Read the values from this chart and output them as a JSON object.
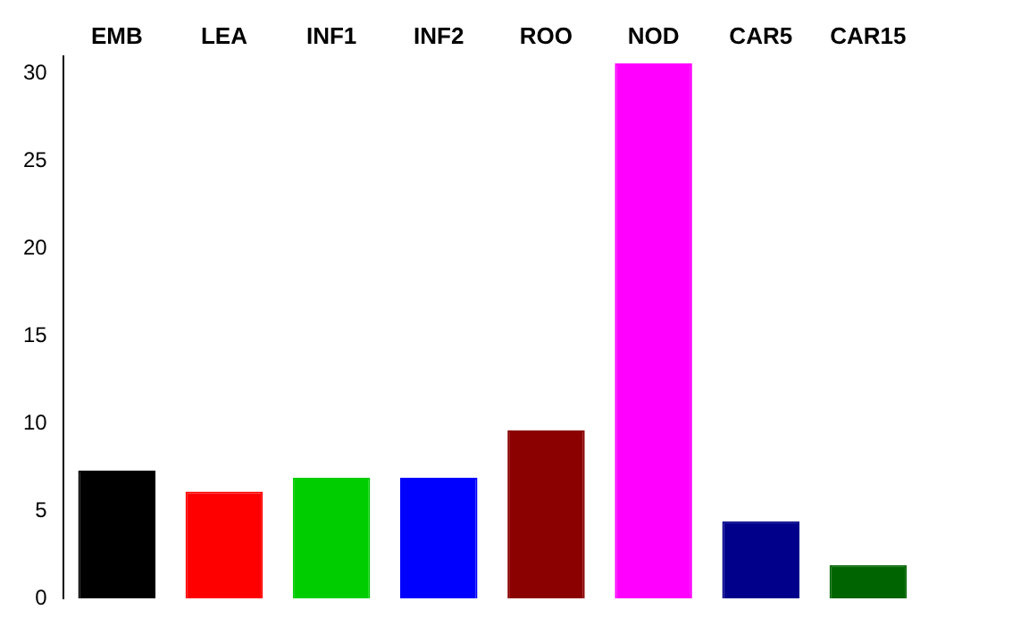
{
  "chart_data": {
    "type": "bar",
    "categories": [
      "EMB",
      "LEA",
      "INF1",
      "INF2",
      "ROO",
      "NOD",
      "CAR5",
      "CAR15"
    ],
    "values": [
      7.3,
      6.1,
      6.9,
      6.9,
      9.6,
      30.6,
      4.4,
      1.9
    ],
    "colors": [
      "#000000",
      "#ff0000",
      "#00cd00",
      "#0000ff",
      "#8b0000",
      "#ff00ff",
      "#00008b",
      "#006400"
    ],
    "ylim": [
      0,
      31
    ],
    "yticks": [
      0,
      5,
      10,
      15,
      20,
      25,
      30
    ],
    "grid": false,
    "legend": false
  }
}
